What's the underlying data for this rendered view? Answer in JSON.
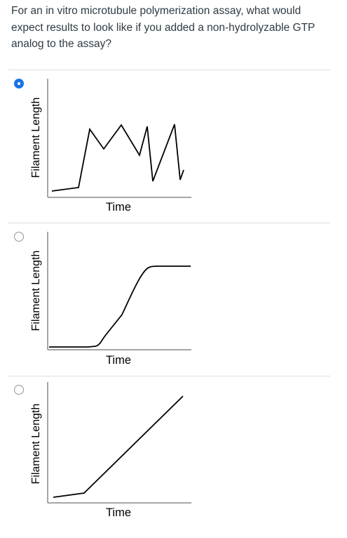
{
  "question": {
    "text": "For an in vitro microtubule polymerization assay, what would expect results to look like if you added a non-hydrolyzable GTP analog to the assay?"
  },
  "options": [
    {
      "selected": true,
      "graph": {
        "xlabel": "Time",
        "ylabel": "Filament Length",
        "shape": "zigzag"
      }
    },
    {
      "selected": false,
      "graph": {
        "xlabel": "Time",
        "ylabel": "Filament Length",
        "shape": "sigmoid"
      }
    },
    {
      "selected": false,
      "graph": {
        "xlabel": "Time",
        "ylabel": "Filament Length",
        "shape": "linear"
      }
    }
  ],
  "colors": {
    "selected_radio": "#1a73e8",
    "text": "#2d3b45",
    "divider": "#dcdee0"
  }
}
